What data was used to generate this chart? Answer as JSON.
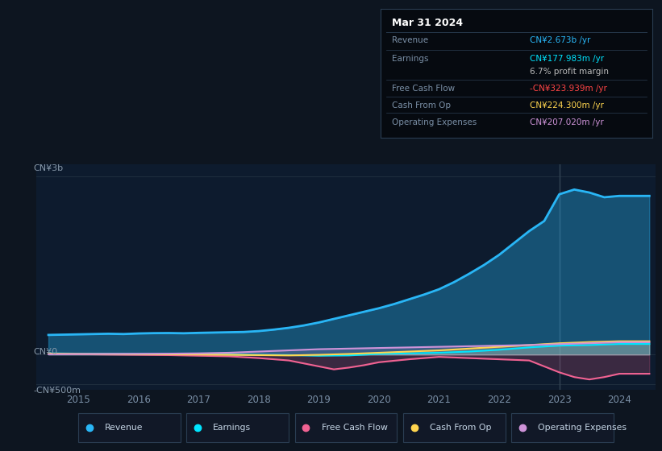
{
  "bg_color": "#0d1520",
  "plot_bg_color": "#0d1b2e",
  "legend_bg": "#111827",
  "box_bg": "#060a10",
  "ylabel_top": "CN¥3b",
  "ylabel_zero": "CN¥0",
  "ylabel_neg": "-CN¥500m",
  "x_labels": [
    "2015",
    "2016",
    "2017",
    "2018",
    "2019",
    "2020",
    "2021",
    "2022",
    "2023",
    "2024"
  ],
  "ylim": [
    -600,
    3200
  ],
  "xlim": [
    2014.3,
    2024.6
  ],
  "title_box": {
    "date": "Mar 31 2024",
    "rows": [
      {
        "label": "Revenue",
        "value": "CN¥2.673b /yr",
        "value_color": "#29b6f6",
        "has_divider": true
      },
      {
        "label": "Earnings",
        "value": "CN¥177.983m /yr",
        "value_color": "#00e5ff",
        "has_divider": true
      },
      {
        "label": "",
        "value": "6.7% profit margin",
        "value_color": "#bbbbbb",
        "has_divider": false
      },
      {
        "label": "Free Cash Flow",
        "value": "-CN¥323.939m /yr",
        "value_color": "#ff4444",
        "has_divider": true
      },
      {
        "label": "Cash From Op",
        "value": "CN¥224.300m /yr",
        "value_color": "#ffd54f",
        "has_divider": true
      },
      {
        "label": "Operating Expenses",
        "value": "CN¥207.020m /yr",
        "value_color": "#ce93d8",
        "has_divider": true
      }
    ]
  },
  "revenue": {
    "color": "#29b6f6",
    "label": "Revenue",
    "x": [
      2014.5,
      2015,
      2015.25,
      2015.5,
      2015.75,
      2016,
      2016.25,
      2016.5,
      2016.75,
      2017,
      2017.25,
      2017.5,
      2017.75,
      2018,
      2018.25,
      2018.5,
      2018.75,
      2019,
      2019.25,
      2019.5,
      2019.75,
      2020,
      2020.25,
      2020.5,
      2020.75,
      2021,
      2021.25,
      2021.5,
      2021.75,
      2022,
      2022.25,
      2022.5,
      2022.75,
      2023,
      2023.25,
      2023.5,
      2023.75,
      2024,
      2024.5
    ],
    "y": [
      330,
      340,
      345,
      350,
      345,
      355,
      360,
      362,
      358,
      365,
      370,
      375,
      380,
      395,
      420,
      450,
      490,
      540,
      600,
      660,
      720,
      780,
      850,
      930,
      1010,
      1100,
      1220,
      1360,
      1510,
      1680,
      1880,
      2080,
      2250,
      2700,
      2780,
      2730,
      2650,
      2673,
      2673
    ]
  },
  "earnings": {
    "color": "#00e5ff",
    "label": "Earnings",
    "x": [
      2014.5,
      2015,
      2015.5,
      2016,
      2016.5,
      2017,
      2017.5,
      2018,
      2018.5,
      2019,
      2019.5,
      2020,
      2020.5,
      2021,
      2021.5,
      2022,
      2022.5,
      2023,
      2023.5,
      2024,
      2024.5
    ],
    "y": [
      20,
      15,
      12,
      10,
      8,
      5,
      0,
      -5,
      -10,
      -20,
      -15,
      10,
      20,
      30,
      50,
      80,
      120,
      150,
      160,
      178,
      178
    ]
  },
  "free_cash_flow": {
    "color": "#f06292",
    "label": "Free Cash Flow",
    "x": [
      2014.5,
      2015,
      2015.5,
      2016,
      2016.5,
      2017,
      2017.5,
      2018,
      2018.5,
      2019,
      2019.25,
      2019.5,
      2019.75,
      2020,
      2020.5,
      2021,
      2021.5,
      2022,
      2022.5,
      2023,
      2023.25,
      2023.5,
      2023.75,
      2024,
      2024.5
    ],
    "y": [
      10,
      5,
      0,
      -5,
      -10,
      -20,
      -30,
      -60,
      -100,
      -200,
      -250,
      -220,
      -180,
      -130,
      -80,
      -40,
      -60,
      -80,
      -100,
      -300,
      -380,
      -420,
      -380,
      -324,
      -324
    ]
  },
  "cash_from_op": {
    "color": "#ffd54f",
    "label": "Cash From Op",
    "x": [
      2014.5,
      2015,
      2015.5,
      2016,
      2016.5,
      2017,
      2017.5,
      2018,
      2018.5,
      2019,
      2019.5,
      2020,
      2020.5,
      2021,
      2021.5,
      2022,
      2022.5,
      2023,
      2023.5,
      2024,
      2024.5
    ],
    "y": [
      15,
      10,
      8,
      5,
      3,
      0,
      -5,
      -10,
      -15,
      -5,
      10,
      30,
      50,
      70,
      100,
      130,
      160,
      190,
      210,
      224,
      224
    ]
  },
  "operating_expenses": {
    "color": "#ce93d8",
    "label": "Operating Expenses",
    "x": [
      2014.5,
      2015,
      2015.5,
      2016,
      2016.5,
      2017,
      2017.5,
      2018,
      2018.5,
      2019,
      2019.5,
      2020,
      2020.5,
      2021,
      2021.5,
      2022,
      2022.5,
      2023,
      2023.5,
      2024,
      2024.5
    ],
    "y": [
      5,
      8,
      10,
      12,
      15,
      20,
      30,
      50,
      70,
      90,
      100,
      110,
      120,
      130,
      140,
      150,
      160,
      175,
      190,
      207,
      207
    ]
  },
  "vline_x": 2023,
  "legend_entries": [
    {
      "label": "Revenue",
      "color": "#29b6f6"
    },
    {
      "label": "Earnings",
      "color": "#00e5ff"
    },
    {
      "label": "Free Cash Flow",
      "color": "#f06292"
    },
    {
      "label": "Cash From Op",
      "color": "#ffd54f"
    },
    {
      "label": "Operating Expenses",
      "color": "#ce93d8"
    }
  ],
  "grid_color": "#1e2d3d",
  "hline_color": "#2a3f55"
}
